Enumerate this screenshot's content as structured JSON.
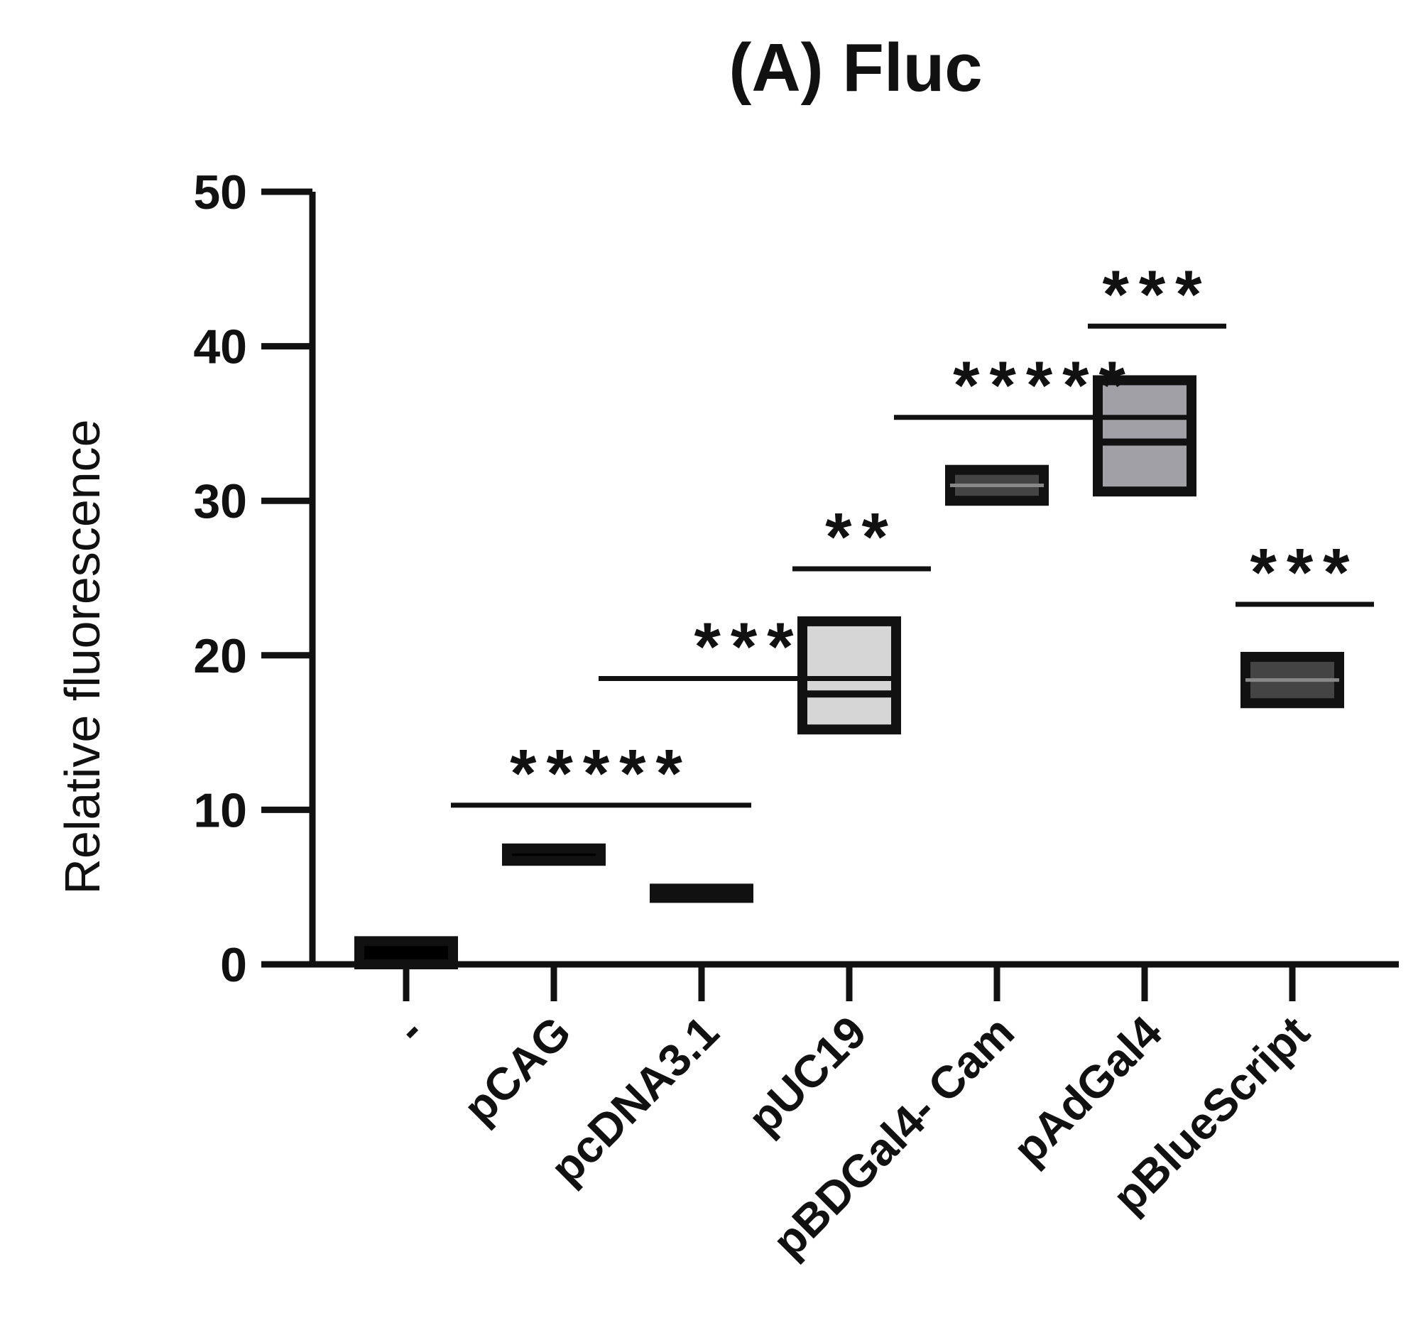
{
  "chart_data": {
    "type": "box",
    "title": "(A) Fluc",
    "xlabel": "",
    "ylabel": "Relative fluorescence",
    "ylim": [
      0,
      50
    ],
    "yticks": [
      "0",
      "10",
      "20",
      "30",
      "40",
      "50"
    ],
    "grid": false,
    "categories": [
      "-",
      "pCAG",
      "pcDNA3.1",
      "pUC19",
      "pBDGal4- Cam",
      "pAdGal4",
      "pBlueScript"
    ],
    "boxes": [
      {
        "category": "-",
        "low": 0.0,
        "high": 1.5,
        "median": 0.8,
        "fill": "#000000"
      },
      {
        "category": "pCAG",
        "low": 6.7,
        "high": 7.5,
        "median": 7.1,
        "fill": "#000000"
      },
      {
        "category": "pcDNA3.1",
        "low": 4.3,
        "high": 4.9,
        "median": 4.6,
        "fill": "#000000"
      },
      {
        "category": "pUC19",
        "low": 15.2,
        "high": 22.2,
        "median": 17.5,
        "fill": "#d6d6d6"
      },
      {
        "category": "pBDGal4- Cam",
        "low": 30.0,
        "high": 32.0,
        "median": 31.0,
        "fill": "#444444"
      },
      {
        "category": "pAdGal4",
        "low": 30.6,
        "high": 37.8,
        "median": 33.8,
        "fill": "#a0a0a6"
      },
      {
        "category": "pBlueScript",
        "low": 16.9,
        "high": 19.9,
        "median": 18.4,
        "fill": "#444444"
      }
    ],
    "significance": [
      {
        "label": "*****",
        "from": "pCAG",
        "to": "pcDNA3.1",
        "y": 10.3
      },
      {
        "label": "***",
        "from": "pcDNA3.1",
        "to": "pUC19",
        "y": 18.5
      },
      {
        "label": "**",
        "from": "pUC19",
        "to": "pUC19",
        "y": 25.6
      },
      {
        "label": "*****",
        "from": "pBDGal4- Cam",
        "to": "pAdGal4",
        "y": 35.4
      },
      {
        "label": "***",
        "from": "pAdGal4",
        "to": "pAdGal4",
        "y": 41.3
      },
      {
        "label": "***",
        "from": "pBlueScript",
        "to": "pBlueScript",
        "y": 23.3
      }
    ]
  }
}
